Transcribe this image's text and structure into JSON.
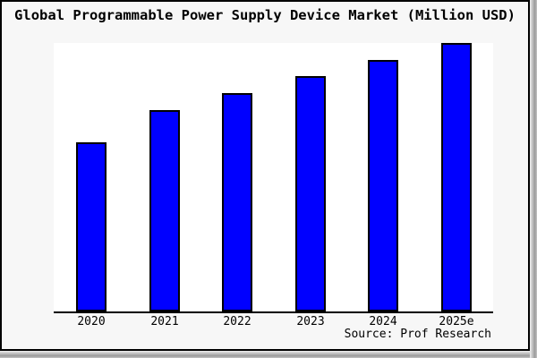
{
  "window": {
    "background_color": "#f7f7f7",
    "border_color": "#000000"
  },
  "source": "Source: Prof Research",
  "chart_data": {
    "type": "bar",
    "title": "Global Programmable Power Supply Device Market (Million USD)",
    "categories": [
      "2020",
      "2021",
      "2022",
      "2023",
      "2024",
      "2025e"
    ],
    "values": [
      189,
      225,
      244,
      263,
      281,
      300
    ],
    "values_note": "no numeric y-axis shown in chart; values are relative bar heights (px), ratio 2020:2025e ≈ 0.63:1.00",
    "xlabel": "",
    "ylabel": "",
    "ylim": [
      0,
      300
    ],
    "grid": false,
    "legend": false,
    "bar_color": "#0000ff",
    "bar_edge_color": "#000000",
    "plot_background": "#ffffff",
    "axis_color": "#000000"
  }
}
